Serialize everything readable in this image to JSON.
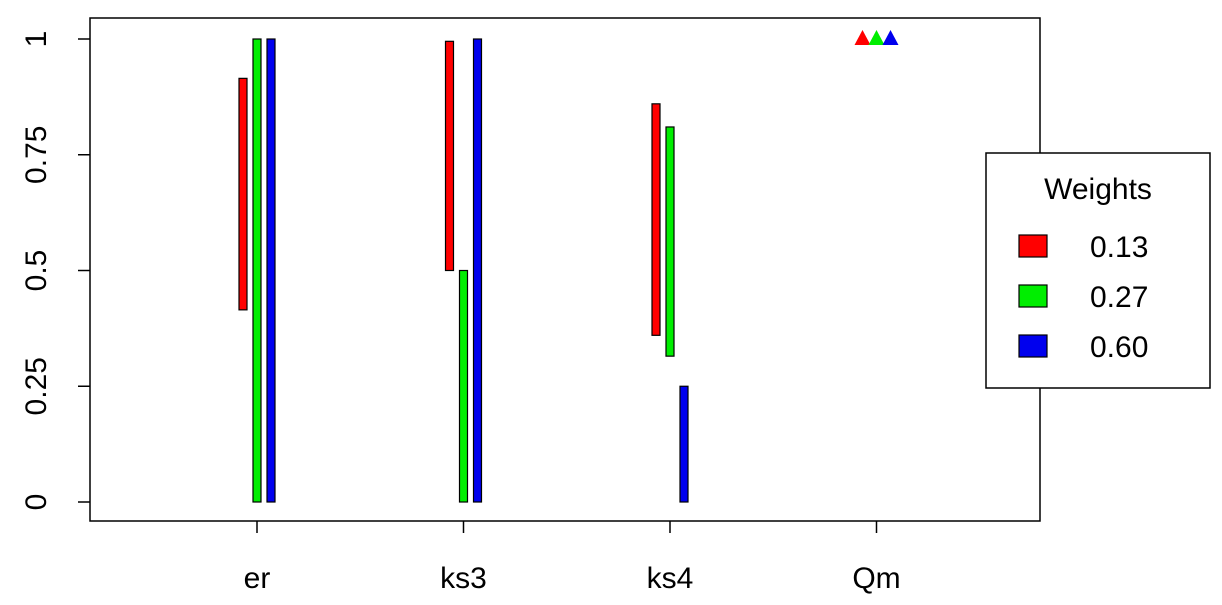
{
  "chart_data": {
    "type": "range-bar",
    "categories": [
      "er",
      "ks3",
      "ks4",
      "Qm"
    ],
    "legend_title": "Weights",
    "legend_position": "right",
    "series": [
      {
        "name": "0.13",
        "color": "#ff0000",
        "low": [
          0.415,
          0.5,
          0.36,
          1
        ],
        "high": [
          0.915,
          0.995,
          0.86,
          1
        ]
      },
      {
        "name": "0.27",
        "color": "#00ee00",
        "low": [
          0,
          0,
          0.315,
          1
        ],
        "high": [
          1,
          0.5,
          0.81,
          1
        ]
      },
      {
        "name": "0.60",
        "color": "#0000ee",
        "low": [
          0,
          0,
          0,
          1
        ],
        "high": [
          1,
          1,
          0.25,
          1
        ]
      }
    ],
    "ylim": [
      0,
      1
    ],
    "yticks": [
      0,
      0.25,
      0.5,
      0.75,
      1
    ]
  }
}
